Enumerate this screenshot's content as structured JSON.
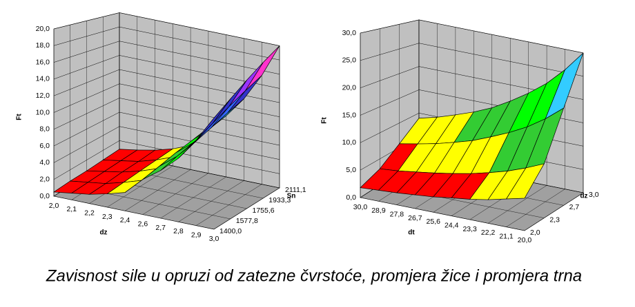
{
  "chart_data": [
    {
      "type": "surface3d",
      "z_label": "Ft",
      "x_label": "dz",
      "depth_label": "Sn",
      "x_categories": [
        "2,0",
        "2,1",
        "2,2",
        "2,3",
        "2,4",
        "2,6",
        "2,7",
        "2,8",
        "2,9",
        "3,0"
      ],
      "depth_categories": [
        "1400,0",
        "1577,8",
        "1755,6",
        "1933,3",
        "2111,1"
      ],
      "zlim": [
        0,
        20
      ],
      "zticks": [
        {
          "value": 0,
          "label": "0,0"
        },
        {
          "value": 2,
          "label": "2,0"
        },
        {
          "value": 4,
          "label": "4,0"
        },
        {
          "value": 6,
          "label": "6,0"
        },
        {
          "value": 8,
          "label": "8,0"
        },
        {
          "value": 10,
          "label": "10,0"
        },
        {
          "value": 12,
          "label": "12,0"
        },
        {
          "value": 14,
          "label": "14,0"
        },
        {
          "value": 16,
          "label": "16,0"
        },
        {
          "value": 18,
          "label": "18,0"
        },
        {
          "value": 20,
          "label": "20,0"
        }
      ],
      "z": [
        [
          0.5,
          0.8,
          1.1,
          1.6,
          2.2,
          4.2,
          5.7,
          7.6,
          10.2,
          13.3
        ],
        [
          0.6,
          0.9,
          1.2,
          1.8,
          2.5,
          4.7,
          6.4,
          8.6,
          11.4,
          14.9
        ],
        [
          0.6,
          1.0,
          1.4,
          2.0,
          2.8,
          5.3,
          7.1,
          9.5,
          12.7,
          16.6
        ],
        [
          0.7,
          1.1,
          1.5,
          2.2,
          3.1,
          5.8,
          7.9,
          10.5,
          14.0,
          18.3
        ],
        [
          0.8,
          1.2,
          1.7,
          2.4,
          3.4,
          6.4,
          8.6,
          11.5,
          15.3,
          20.0
        ]
      ],
      "band_colors": [
        "#ff0000",
        "#ffff00",
        "#33cc33",
        "#00ff00",
        "#33ccff",
        "#3366ff",
        "#3333cc",
        "#9933ff",
        "#ff33cc",
        "#000080"
      ]
    },
    {
      "type": "surface3d",
      "z_label": "Ft",
      "x_label": "dt",
      "depth_label": "dz",
      "x_categories": [
        "30,0",
        "28,9",
        "27,8",
        "26,7",
        "25,6",
        "24,4",
        "23,3",
        "22,2",
        "21,1",
        "20,0"
      ],
      "depth_categories": [
        "2,0",
        "2,3",
        "2,7",
        "3,0"
      ],
      "zlim": [
        0,
        30
      ],
      "zticks": [
        {
          "value": 0,
          "label": "0,0"
        },
        {
          "value": 5,
          "label": "5,0"
        },
        {
          "value": 10,
          "label": "10,0"
        },
        {
          "value": 15,
          "label": "15,0"
        },
        {
          "value": 20,
          "label": "20,0"
        },
        {
          "value": 25,
          "label": "25,0"
        },
        {
          "value": 30,
          "label": "30,0"
        }
      ],
      "z": [
        [
          1.8,
          2.0,
          2.2,
          2.5,
          2.8,
          3.3,
          3.7,
          4.3,
          5.1,
          5.9
        ],
        [
          3.1,
          3.4,
          3.9,
          4.4,
          5.0,
          5.7,
          6.6,
          7.6,
          8.9,
          10.4
        ],
        [
          5.8,
          6.5,
          7.3,
          8.3,
          9.4,
          10.9,
          12.5,
          14.4,
          16.8,
          19.7
        ],
        [
          8.9,
          9.9,
          11.2,
          12.6,
          14.3,
          16.5,
          19.0,
          21.9,
          25.6,
          30.0
        ]
      ],
      "band_colors": [
        "#ff0000",
        "#ffff00",
        "#33cc33",
        "#00ff00",
        "#33ccff",
        "#3333ff"
      ]
    }
  ],
  "caption": "Zavisnost sile u opruzi od zatezne čvrstoće, promjera žice i promjera trna"
}
